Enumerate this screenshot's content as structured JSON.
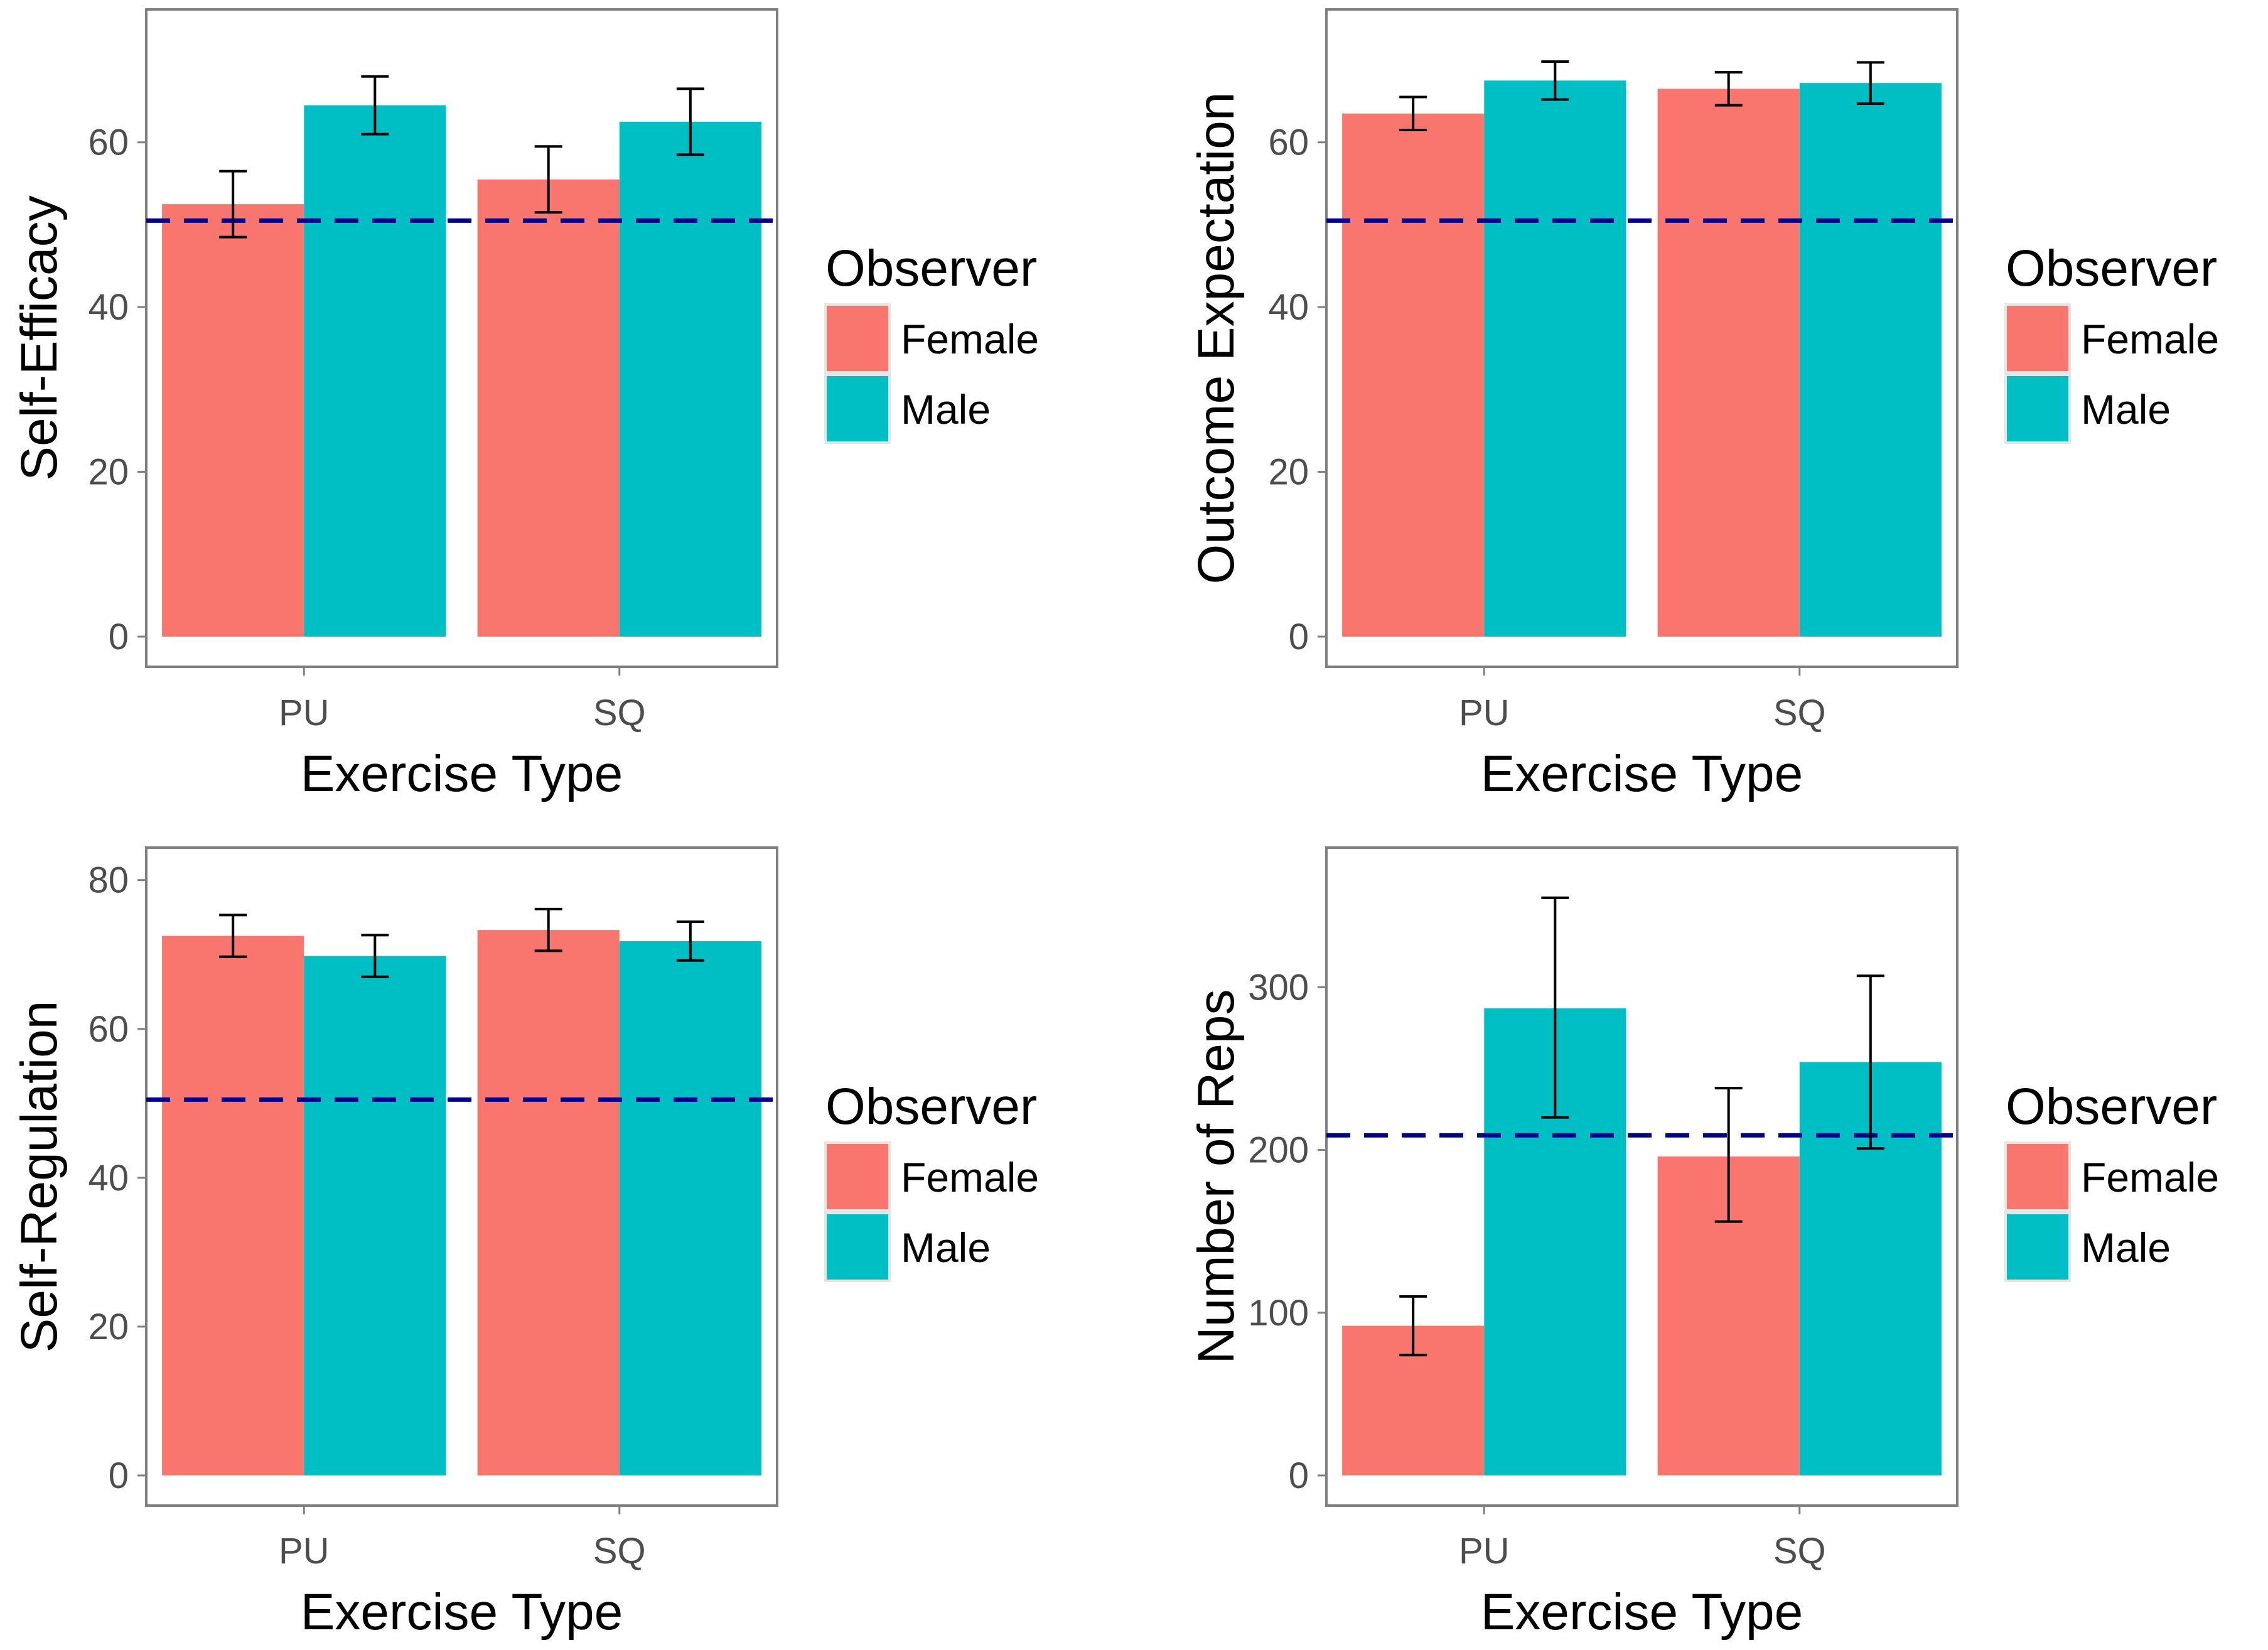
{
  "figure": {
    "legend_title": "Observer",
    "legend_items": [
      {
        "label": "Female",
        "color": "#F8766D"
      },
      {
        "label": "Male",
        "color": "#00BFC4"
      }
    ],
    "reference_line_color": "#00008B",
    "error_bar_color": "#000000"
  },
  "chart_data": [
    {
      "type": "bar",
      "title": "",
      "xlabel": "Exercise Type",
      "ylabel": "Self-Efficacy",
      "categories": [
        "PU",
        "SQ"
      ],
      "ylim": [
        0,
        74
      ],
      "yticks": [
        0,
        20,
        40,
        60
      ],
      "reference_line": 50.5,
      "series": [
        {
          "name": "Female",
          "color": "#F8766D",
          "values": [
            52.5,
            55.5
          ],
          "err_low": [
            48.5,
            51.5
          ],
          "err_high": [
            56.5,
            59.5
          ]
        },
        {
          "name": "Male",
          "color": "#00BFC4",
          "values": [
            64.5,
            62.5
          ],
          "err_low": [
            61,
            58.5
          ],
          "err_high": [
            68,
            66.5
          ]
        }
      ],
      "legend_position": "right"
    },
    {
      "type": "bar",
      "title": "",
      "xlabel": "Exercise Type",
      "ylabel": "Outcome Expectation",
      "categories": [
        "PU",
        "SQ"
      ],
      "ylim": [
        0,
        74
      ],
      "yticks": [
        0,
        20,
        40,
        60
      ],
      "reference_line": 50.5,
      "series": [
        {
          "name": "Female",
          "color": "#F8766D",
          "values": [
            63.5,
            66.5
          ],
          "err_low": [
            61.5,
            64.5
          ],
          "err_high": [
            65.5,
            68.5
          ]
        },
        {
          "name": "Male",
          "color": "#00BFC4",
          "values": [
            67.5,
            67.2
          ],
          "err_low": [
            65.2,
            64.7
          ],
          "err_high": [
            69.8,
            69.7
          ]
        }
      ],
      "legend_position": "right"
    },
    {
      "type": "bar",
      "title": "",
      "xlabel": "Exercise Type",
      "ylabel": "Self-Regulation",
      "categories": [
        "PU",
        "SQ"
      ],
      "ylim": [
        0,
        82
      ],
      "yticks": [
        0,
        20,
        40,
        60,
        80
      ],
      "reference_line": 50.5,
      "series": [
        {
          "name": "Female",
          "color": "#F8766D",
          "values": [
            72.5,
            73.3
          ],
          "err_low": [
            69.7,
            70.5
          ],
          "err_high": [
            75.3,
            76.1
          ]
        },
        {
          "name": "Male",
          "color": "#00BFC4",
          "values": [
            69.8,
            71.8
          ],
          "err_low": [
            67,
            69.2
          ],
          "err_high": [
            72.6,
            74.4
          ]
        }
      ],
      "legend_position": "right"
    },
    {
      "type": "bar",
      "title": "",
      "xlabel": "Exercise Type",
      "ylabel": "Number of Reps",
      "categories": [
        "PU",
        "SQ"
      ],
      "ylim": [
        0,
        375
      ],
      "yticks": [
        0,
        100,
        200,
        300
      ],
      "reference_line": 209,
      "series": [
        {
          "name": "Female",
          "color": "#F8766D",
          "values": [
            92,
            196
          ],
          "err_low": [
            74,
            156
          ],
          "err_high": [
            110,
            238
          ]
        },
        {
          "name": "Male",
          "color": "#00BFC4",
          "values": [
            287,
            254
          ],
          "err_low": [
            220,
            201
          ],
          "err_high": [
            355,
            307
          ]
        }
      ],
      "legend_position": "right"
    }
  ]
}
